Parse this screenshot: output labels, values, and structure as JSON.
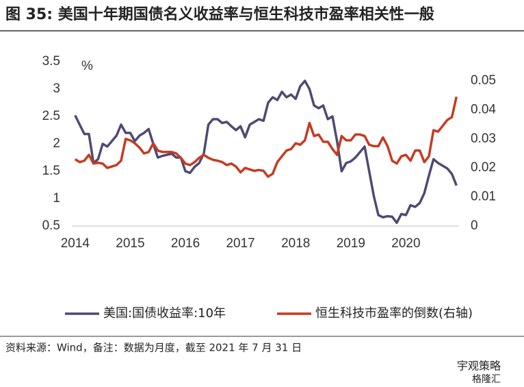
{
  "chart_data": {
    "type": "line",
    "title": "图 35: 美国十年期国债名义收益率与恒生科技市盈率相关性一般",
    "unit_label": "%",
    "source": "资料来源：Wind，备注：数据为月度，截至 2021 年 7 月 31 日",
    "watermark": [
      "宇观策略",
      "格隆汇"
    ],
    "x": [
      2014.0,
      2014.083,
      2014.167,
      2014.25,
      2014.333,
      2014.417,
      2014.5,
      2014.583,
      2014.667,
      2014.75,
      2014.833,
      2014.917,
      2015.0,
      2015.083,
      2015.167,
      2015.25,
      2015.333,
      2015.417,
      2015.5,
      2015.583,
      2015.667,
      2015.75,
      2015.833,
      2015.917,
      2016.0,
      2016.083,
      2016.167,
      2016.25,
      2016.333,
      2016.417,
      2016.5,
      2016.583,
      2016.667,
      2016.75,
      2016.833,
      2016.917,
      2017.0,
      2017.083,
      2017.167,
      2017.25,
      2017.333,
      2017.417,
      2017.5,
      2017.583,
      2017.667,
      2017.75,
      2017.833,
      2017.917,
      2018.0,
      2018.083,
      2018.167,
      2018.25,
      2018.333,
      2018.417,
      2018.5,
      2018.583,
      2018.667,
      2018.75,
      2018.833,
      2018.917,
      2019.0,
      2019.083,
      2019.167,
      2019.25,
      2019.333,
      2019.417,
      2019.5,
      2019.583,
      2019.667,
      2019.75,
      2019.833,
      2019.917,
      2020.0,
      2020.083,
      2020.167,
      2020.25,
      2020.333,
      2020.417,
      2020.5,
      2020.583,
      2020.667,
      2020.75,
      2020.833,
      2020.917
    ],
    "xlim": [
      2013.94,
      2020.95
    ],
    "xticks": [
      2014,
      2015,
      2016,
      2017,
      2018,
      2019,
      2020
    ],
    "ylim": [
      0.5,
      3.5
    ],
    "yticks": [
      0.5,
      1,
      1.5,
      2,
      2.5,
      3,
      3.5
    ],
    "y2lim": [
      0,
      0.0566
    ],
    "y2ticks": [
      0,
      0.01,
      0.02,
      0.03,
      0.04,
      0.05
    ],
    "legend": "bottom",
    "series": [
      {
        "name": "美国:国债收益率:10年",
        "color": "#4d4a72",
        "values": [
          2.52,
          2.35,
          2.18,
          2.18,
          1.65,
          1.72,
          2.0,
          1.95,
          2.05,
          2.15,
          2.35,
          2.2,
          2.2,
          2.05,
          2.15,
          2.2,
          2.27,
          2.0,
          1.75,
          1.78,
          1.8,
          1.82,
          1.75,
          1.75,
          1.5,
          1.47,
          1.58,
          1.65,
          1.82,
          2.35,
          2.45,
          2.45,
          2.38,
          2.4,
          2.32,
          2.25,
          2.32,
          2.12,
          2.35,
          2.4,
          2.45,
          2.42,
          2.75,
          2.85,
          2.8,
          2.95,
          2.85,
          2.9,
          2.82,
          3.05,
          3.15,
          3.0,
          2.7,
          2.65,
          2.7,
          2.45,
          2.5,
          2.05,
          1.5,
          1.65,
          1.68,
          1.75,
          1.85,
          1.95,
          1.5,
          1.05,
          0.7,
          0.66,
          0.68,
          0.67,
          0.56,
          0.72,
          0.7,
          0.88,
          0.85,
          0.92,
          1.1,
          1.42,
          1.72,
          1.65,
          1.6,
          1.55,
          1.45,
          1.24
        ]
      },
      {
        "name": "恒生科技市盈率的倒数(右轴)",
        "color": "#c63a22",
        "axis": "y2",
        "values": [
          0.023,
          0.022,
          0.0225,
          0.0245,
          0.0215,
          0.0218,
          0.0215,
          0.02,
          0.0205,
          0.021,
          0.0225,
          0.03,
          0.0295,
          0.0285,
          0.027,
          0.025,
          0.0255,
          0.0285,
          0.026,
          0.0255,
          0.0255,
          0.0255,
          0.025,
          0.0235,
          0.0215,
          0.021,
          0.022,
          0.0235,
          0.0245,
          0.0235,
          0.0228,
          0.0225,
          0.022,
          0.021,
          0.0215,
          0.0205,
          0.0185,
          0.02,
          0.0195,
          0.019,
          0.0193,
          0.019,
          0.017,
          0.018,
          0.022,
          0.024,
          0.026,
          0.0265,
          0.0285,
          0.028,
          0.0295,
          0.0355,
          0.031,
          0.0315,
          0.029,
          0.029,
          0.0265,
          0.0245,
          0.031,
          0.0295,
          0.0295,
          0.0315,
          0.0315,
          0.031,
          0.028,
          0.0275,
          0.0275,
          0.0305,
          0.0275,
          0.0225,
          0.0215,
          0.024,
          0.0245,
          0.0225,
          0.026,
          0.026,
          0.022,
          0.024,
          0.033,
          0.0325,
          0.0345,
          0.0365,
          0.0375,
          0.0445
        ]
      }
    ]
  }
}
